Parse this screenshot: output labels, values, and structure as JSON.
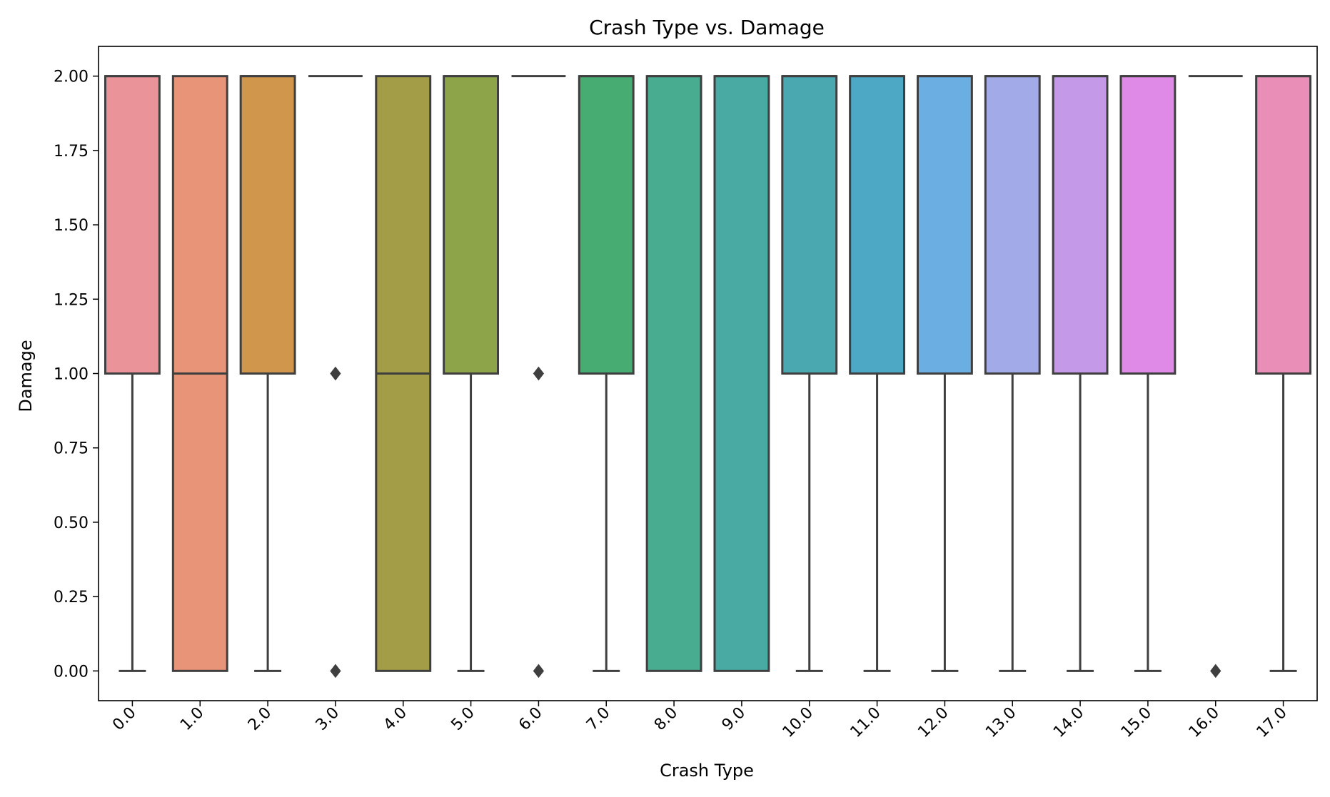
{
  "chart_data": {
    "type": "box",
    "title": "Crash Type vs. Damage",
    "xlabel": "Crash Type",
    "ylabel": "Damage",
    "ylim": [
      -0.1,
      2.1
    ],
    "yticks": [
      "0.00",
      "0.25",
      "0.50",
      "0.75",
      "1.00",
      "1.25",
      "1.50",
      "1.75",
      "2.00"
    ],
    "grid": false,
    "categories": [
      "0.0",
      "1.0",
      "2.0",
      "3.0",
      "4.0",
      "5.0",
      "6.0",
      "7.0",
      "8.0",
      "9.0",
      "10.0",
      "11.0",
      "12.0",
      "13.0",
      "14.0",
      "15.0",
      "16.0",
      "17.0"
    ],
    "boxes": [
      {
        "q1": 1,
        "median": 2,
        "q3": 2,
        "whisker_low": 0,
        "whisker_high": 2,
        "outliers": [],
        "color": "#ea9399"
      },
      {
        "q1": 0,
        "median": 1,
        "q3": 2,
        "whisker_low": 0,
        "whisker_high": 2,
        "outliers": [],
        "color": "#e79479"
      },
      {
        "q1": 1,
        "median": 2,
        "q3": 2,
        "whisker_low": 0,
        "whisker_high": 2,
        "outliers": [],
        "color": "#d0964c"
      },
      {
        "q1": 2,
        "median": 2,
        "q3": 2,
        "whisker_low": 2,
        "whisker_high": 2,
        "outliers": [
          0,
          1
        ],
        "color": "#b89b3c"
      },
      {
        "q1": 0,
        "median": 1,
        "q3": 2,
        "whisker_low": 0,
        "whisker_high": 2,
        "outliers": [],
        "color": "#a39d47"
      },
      {
        "q1": 1,
        "median": 2,
        "q3": 2,
        "whisker_low": 0,
        "whisker_high": 2,
        "outliers": [],
        "color": "#8da548"
      },
      {
        "q1": 2,
        "median": 2,
        "q3": 2,
        "whisker_low": 2,
        "whisker_high": 2,
        "outliers": [
          0,
          1
        ],
        "color": "#6aa94a"
      },
      {
        "q1": 1,
        "median": 2,
        "q3": 2,
        "whisker_low": 0,
        "whisker_high": 2,
        "outliers": [],
        "color": "#47ac72"
      },
      {
        "q1": 0,
        "median": 2,
        "q3": 2,
        "whisker_low": 0,
        "whisker_high": 2,
        "outliers": [],
        "color": "#48ac90"
      },
      {
        "q1": 0,
        "median": 2,
        "q3": 2,
        "whisker_low": 0,
        "whisker_high": 2,
        "outliers": [],
        "color": "#48aaa3"
      },
      {
        "q1": 1,
        "median": 2,
        "q3": 2,
        "whisker_low": 0,
        "whisker_high": 2,
        "outliers": [],
        "color": "#4aa9b0"
      },
      {
        "q1": 1,
        "median": 2,
        "q3": 2,
        "whisker_low": 0,
        "whisker_high": 2,
        "outliers": [],
        "color": "#4ca8c5"
      },
      {
        "q1": 1,
        "median": 2,
        "q3": 2,
        "whisker_low": 0,
        "whisker_high": 2,
        "outliers": [],
        "color": "#6aaee2"
      },
      {
        "q1": 1,
        "median": 2,
        "q3": 2,
        "whisker_low": 0,
        "whisker_high": 2,
        "outliers": [],
        "color": "#a3aae8"
      },
      {
        "q1": 1,
        "median": 2,
        "q3": 2,
        "whisker_low": 0,
        "whisker_high": 2,
        "outliers": [],
        "color": "#c49ae8"
      },
      {
        "q1": 1,
        "median": 2,
        "q3": 2,
        "whisker_low": 0,
        "whisker_high": 2,
        "outliers": [],
        "color": "#df8ae6"
      },
      {
        "q1": 2,
        "median": 2,
        "q3": 2,
        "whisker_low": 2,
        "whisker_high": 2,
        "outliers": [
          0
        ],
        "color": "#e88ecb"
      },
      {
        "q1": 1,
        "median": 2,
        "q3": 2,
        "whisker_low": 0,
        "whisker_high": 2,
        "outliers": [],
        "color": "#e98eb7"
      }
    ],
    "line_color": "#3f3f3f"
  }
}
